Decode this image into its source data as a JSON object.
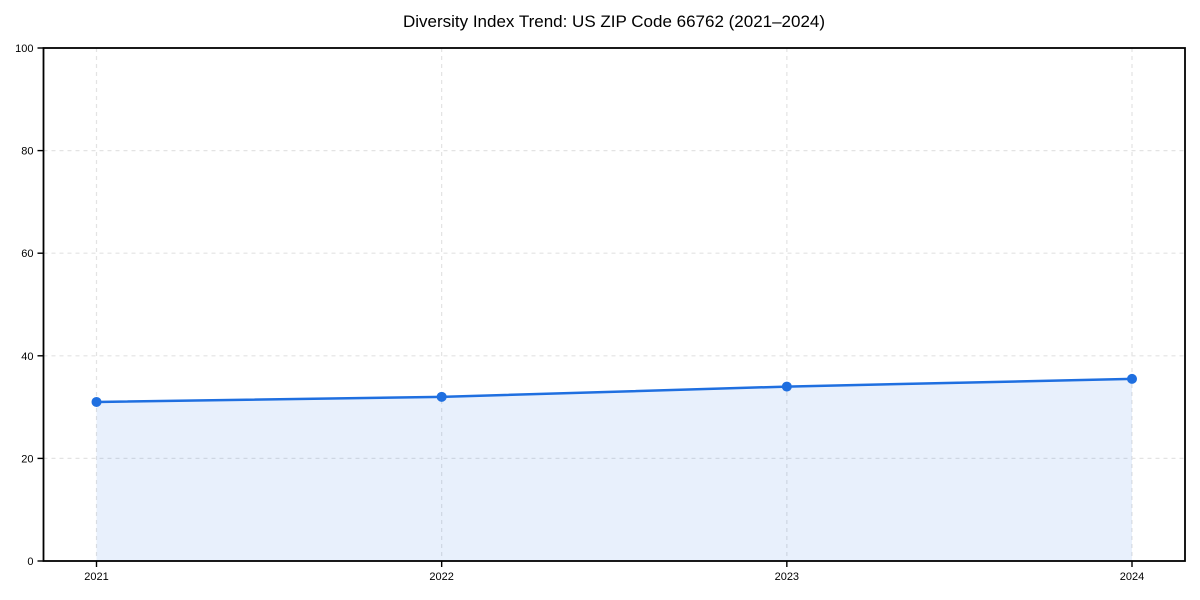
{
  "chart_data": {
    "type": "area",
    "title": "Diversity Index Trend: US ZIP Code 66762 (2021–2024)",
    "categories": [
      "2021",
      "2022",
      "2023",
      "2024"
    ],
    "x": [
      2021,
      2022,
      2023,
      2024
    ],
    "series": [
      {
        "name": "Diversity Index",
        "values": [
          31,
          32,
          34,
          35.5
        ]
      }
    ],
    "xlabel": "",
    "ylabel": "",
    "ylim": [
      0,
      100
    ],
    "yticks": [
      0,
      20,
      40,
      60,
      80,
      100
    ],
    "grid": true,
    "grid_style": "dashed",
    "legend": false,
    "marker": "circle",
    "colors": {
      "line": "#1f6fe0",
      "marker": "#1f6fe0",
      "fill": "#1f6fe0",
      "fill_opacity": 0.1,
      "gridline": "#e3e3e3",
      "axis": "#000000",
      "text": "#000000",
      "background": "#ffffff"
    }
  }
}
